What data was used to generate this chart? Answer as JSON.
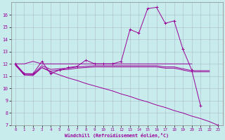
{
  "x": [
    0,
    1,
    2,
    3,
    4,
    5,
    6,
    7,
    8,
    9,
    10,
    11,
    12,
    13,
    14,
    15,
    16,
    17,
    18,
    19,
    20,
    21,
    22,
    23
  ],
  "wc_y": [
    12.0,
    11.2,
    11.2,
    12.2,
    11.2,
    11.5,
    11.7,
    11.8,
    12.3,
    12.0,
    12.0,
    12.0,
    12.2,
    14.8,
    14.5,
    16.5,
    16.6,
    15.3,
    15.5,
    13.2,
    11.5,
    8.6,
    null,
    7.0
  ],
  "upper_flat_x": [
    0,
    1,
    2,
    3,
    4,
    5,
    6,
    7,
    8,
    9,
    10,
    11,
    12,
    13,
    14,
    15,
    16,
    17,
    18,
    19,
    20
  ],
  "upper_flat_y": [
    12.0,
    12.0,
    12.2,
    12.0,
    12.0,
    12.0,
    12.0,
    12.0,
    12.0,
    12.0,
    12.0,
    12.0,
    12.0,
    12.0,
    12.0,
    12.0,
    12.0,
    12.0,
    12.0,
    12.0,
    12.0
  ],
  "mid_flat_x": [
    0,
    1,
    2,
    3,
    4,
    5,
    6,
    7,
    8,
    9,
    10,
    11,
    12,
    13,
    14,
    15,
    16,
    17,
    18,
    19,
    20,
    21,
    22
  ],
  "mid_flat_y": [
    12.0,
    11.2,
    11.15,
    11.85,
    11.55,
    11.6,
    11.65,
    11.75,
    11.8,
    11.85,
    11.85,
    11.85,
    11.85,
    11.85,
    11.85,
    11.85,
    11.85,
    11.75,
    11.75,
    11.6,
    11.45,
    11.45,
    11.45
  ],
  "lower_flat_x": [
    0,
    1,
    2,
    3,
    4,
    5,
    6,
    7,
    8,
    9,
    10,
    11,
    12,
    13,
    14,
    15,
    16,
    17,
    18,
    19,
    20,
    21,
    22
  ],
  "lower_flat_y": [
    11.9,
    11.1,
    11.1,
    11.7,
    11.4,
    11.5,
    11.55,
    11.65,
    11.7,
    11.75,
    11.75,
    11.75,
    11.75,
    11.75,
    11.75,
    11.75,
    11.75,
    11.65,
    11.65,
    11.5,
    11.35,
    11.35,
    11.35
  ],
  "diag_x": [
    0,
    1,
    2,
    3,
    4,
    5,
    6,
    7,
    8,
    9,
    10,
    11,
    12,
    13,
    14,
    15,
    16,
    17,
    18,
    19,
    20,
    21,
    22,
    23
  ],
  "diag_y": [
    11.9,
    11.1,
    11.05,
    11.7,
    11.35,
    11.1,
    10.85,
    10.65,
    10.4,
    10.2,
    10.0,
    9.8,
    9.55,
    9.35,
    9.1,
    8.9,
    8.65,
    8.45,
    8.2,
    8.0,
    7.75,
    7.55,
    7.3,
    7.0
  ],
  "color": "#990099",
  "bg_color": "#c8ecec",
  "grid_color": "#aabbcc",
  "xlabel": "Windchill (Refroidissement éolien,°C)",
  "ylim": [
    7,
    17
  ],
  "xlim": [
    -0.5,
    23.5
  ],
  "yticks": [
    7,
    8,
    9,
    10,
    11,
    12,
    13,
    14,
    15,
    16
  ],
  "xticks": [
    0,
    1,
    2,
    3,
    4,
    5,
    6,
    7,
    8,
    9,
    10,
    11,
    12,
    13,
    14,
    15,
    16,
    17,
    18,
    19,
    20,
    21,
    22,
    23
  ]
}
